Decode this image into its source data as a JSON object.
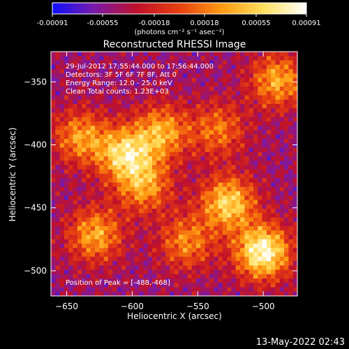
{
  "colorbar": {
    "tick_labels": [
      "-0.00091",
      "-0.00055",
      "-0.00018",
      "0.00018",
      "0.00055",
      "0.00091"
    ],
    "tick_values": [
      -0.00091,
      -0.00055,
      -0.00018,
      0.00018,
      0.00055,
      0.00091
    ],
    "units": "(photons cm⁻² s⁻¹ asec⁻²)",
    "range": [
      -0.00091,
      0.00091
    ],
    "stops": [
      "#1010ff",
      "#7a1aa8",
      "#c0102a",
      "#e84010",
      "#ff9a10",
      "#ffe060",
      "#ffffff"
    ]
  },
  "chart_data": {
    "type": "heatmap",
    "title": "Reconstructed RHESSI Image",
    "xlabel": "Heliocentric X (arcsec)",
    "ylabel": "Heliocentric Y (arcsec)",
    "xlim": [
      -662,
      -474
    ],
    "ylim": [
      -520,
      -326
    ],
    "x_ticks": [
      -650,
      -600,
      -550,
      -500
    ],
    "y_ticks": [
      -500,
      -450,
      -400,
      -350
    ],
    "peak": {
      "x": -488,
      "y": -468
    },
    "annotations": [
      "29-Jul-2012 17:55:44.000 to 17:56:44.000",
      "Detectors: 3F 5F 6F 7F 8F, Att 0",
      "Energy Range: 12.0 - 25.0 keV",
      "Clean     Total counts: 1.23E+03"
    ],
    "peak_label": "Position of Peak = [-488,-468]"
  },
  "footer": {
    "timestamp": "13-May-2022 02:43"
  }
}
